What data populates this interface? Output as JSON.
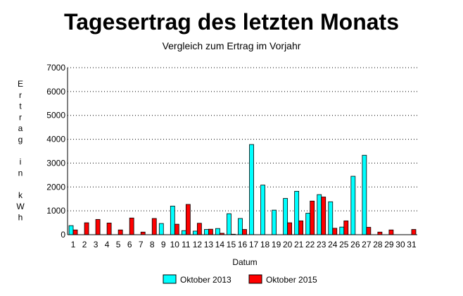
{
  "chart_data": {
    "type": "bar",
    "title": "Tagesertrag des letzten Monats",
    "subtitle": "Vergleich zum Ertrag im Vorjahr",
    "xlabel": "Datum",
    "ylabel": "Ertrag in kWh",
    "ylabel_chars": [
      "E",
      "r",
      "t",
      "r",
      "a",
      "g",
      "",
      "i",
      "n",
      "",
      "k",
      "W",
      "h"
    ],
    "ylim": [
      0,
      7000
    ],
    "yticks": [
      0,
      1000,
      2000,
      3000,
      4000,
      5000,
      6000,
      7000
    ],
    "grid": true,
    "legend_position": "bottom",
    "categories": [
      "1",
      "2",
      "3",
      "4",
      "5",
      "6",
      "7",
      "8",
      "9",
      "10",
      "11",
      "12",
      "13",
      "14",
      "15",
      "16",
      "17",
      "18",
      "19",
      "20",
      "21",
      "22",
      "23",
      "24",
      "25",
      "26",
      "27",
      "28",
      "29",
      "30",
      "31"
    ],
    "series": [
      {
        "name": "Oktober 2013",
        "color": "#00ffff",
        "values": [
          380,
          0,
          0,
          0,
          0,
          0,
          0,
          0,
          470,
          1200,
          170,
          150,
          220,
          260,
          880,
          680,
          3780,
          2080,
          1030,
          1520,
          1820,
          900,
          1680,
          1380,
          320,
          2450,
          3330,
          0,
          0,
          0,
          0
        ]
      },
      {
        "name": "Oktober 2015",
        "color": "#ff0000",
        "values": [
          200,
          500,
          640,
          490,
          200,
          700,
          110,
          680,
          0,
          440,
          1270,
          480,
          230,
          60,
          20,
          220,
          0,
          0,
          0,
          500,
          580,
          1410,
          1580,
          270,
          580,
          0,
          310,
          110,
          200,
          0,
          220
        ]
      }
    ]
  }
}
